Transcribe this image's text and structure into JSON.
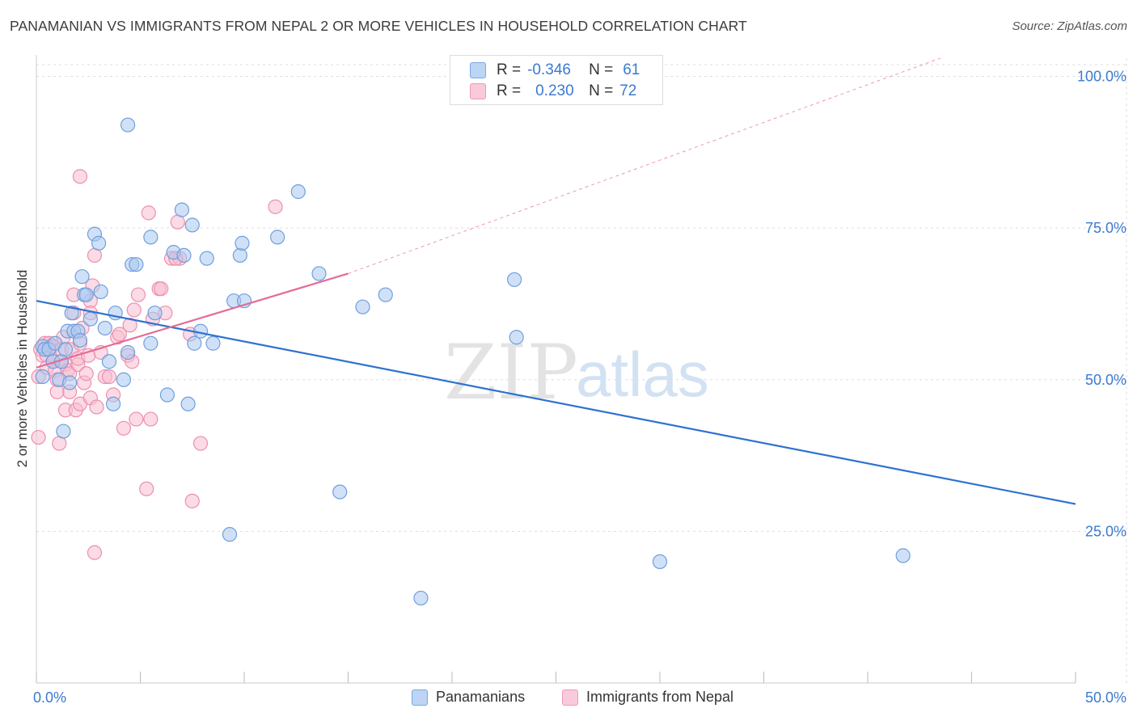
{
  "title": "PANAMANIAN VS IMMIGRANTS FROM NEPAL 2 OR MORE VEHICLES IN HOUSEHOLD CORRELATION CHART",
  "source": "Source: ZipAtlas.com",
  "watermark": {
    "zip": "ZIP",
    "atlas": "atlas"
  },
  "legend": {
    "panamanians": {
      "r_label": "R =",
      "r_value": "-0.346",
      "n_label": "N =",
      "n_value": "61"
    },
    "nepal": {
      "r_label": "R =",
      "r_value": "0.230",
      "n_label": "N =",
      "n_value": "72"
    }
  },
  "bottom_legend": {
    "panamanians": "Panamanians",
    "nepal": "Immigrants from Nepal"
  },
  "colors": {
    "blue_fill": "#a9c8f0",
    "blue_stroke": "#6f9fdc",
    "blue_line": "#2e72cf",
    "pink_fill": "#f7bdd0",
    "pink_stroke": "#ec8fae",
    "pink_line": "#e56b97",
    "axis_text": "#3a7ad0",
    "grid": "#dddddd"
  },
  "chart_data": {
    "type": "scatter",
    "title": "PANAMANIAN VS IMMIGRANTS FROM NEPAL 2 OR MORE VEHICLES IN HOUSEHOLD CORRELATION CHART",
    "xlabel": "",
    "ylabel": "2 or more Vehicles in Household",
    "xlim": [
      0,
      50
    ],
    "ylim": [
      0,
      103
    ],
    "x_tick_labels": {
      "left": "0.0%",
      "right": "50.0%"
    },
    "y_ticks": [
      25,
      50,
      75,
      100
    ],
    "y_tick_labels": [
      "25.0%",
      "50.0%",
      "75.0%",
      "100.0%"
    ],
    "series": [
      {
        "name": "Panamanians",
        "r": -0.346,
        "n": 61,
        "trend": {
          "x0": 0,
          "y0": 63.0,
          "x1": 50,
          "y1": 29.5,
          "dashed_to": null
        },
        "points": [
          [
            0.3,
            55.5
          ],
          [
            0.3,
            50.5
          ],
          [
            0.4,
            55
          ],
          [
            0.6,
            55
          ],
          [
            0.8,
            53
          ],
          [
            0.9,
            56
          ],
          [
            1.1,
            50
          ],
          [
            1.2,
            53
          ],
          [
            1.3,
            41.5
          ],
          [
            1.4,
            55
          ],
          [
            1.5,
            58
          ],
          [
            1.6,
            49.5
          ],
          [
            1.7,
            61
          ],
          [
            1.8,
            58
          ],
          [
            2.0,
            58
          ],
          [
            2.1,
            56.5
          ],
          [
            2.2,
            67
          ],
          [
            2.3,
            64
          ],
          [
            2.4,
            64
          ],
          [
            2.6,
            60
          ],
          [
            2.8,
            74
          ],
          [
            3.0,
            72.5
          ],
          [
            3.1,
            64.5
          ],
          [
            3.3,
            58.5
          ],
          [
            3.5,
            53
          ],
          [
            3.7,
            46
          ],
          [
            3.8,
            61
          ],
          [
            4.2,
            50
          ],
          [
            4.4,
            54.5
          ],
          [
            4.4,
            92
          ],
          [
            4.6,
            69
          ],
          [
            4.8,
            69
          ],
          [
            5.5,
            73.5
          ],
          [
            5.5,
            56
          ],
          [
            5.7,
            61
          ],
          [
            6.3,
            47.5
          ],
          [
            6.6,
            71
          ],
          [
            7.0,
            78
          ],
          [
            7.1,
            70.5
          ],
          [
            7.3,
            46
          ],
          [
            7.5,
            75.5
          ],
          [
            7.6,
            56
          ],
          [
            7.9,
            58
          ],
          [
            8.2,
            70
          ],
          [
            8.5,
            56
          ],
          [
            9.3,
            24.5
          ],
          [
            9.5,
            63
          ],
          [
            9.8,
            70.5
          ],
          [
            9.9,
            72.5
          ],
          [
            10.0,
            63
          ],
          [
            11.6,
            73.5
          ],
          [
            12.6,
            81
          ],
          [
            13.6,
            67.5
          ],
          [
            14.6,
            31.5
          ],
          [
            15.7,
            62
          ],
          [
            16.8,
            64
          ],
          [
            18.5,
            14
          ],
          [
            23.0,
            66.5
          ],
          [
            23.1,
            57
          ],
          [
            30.0,
            20
          ],
          [
            41.7,
            21
          ]
        ]
      },
      {
        "name": "Immigrants from Nepal",
        "r": 0.23,
        "n": 72,
        "trend": {
          "x0": 0,
          "y0": 52.0,
          "x1": 15.0,
          "y1": 67.5,
          "dashed_to": [
            43.5,
            103
          ]
        },
        "points": [
          [
            0.1,
            50.5
          ],
          [
            0.1,
            40.5
          ],
          [
            0.2,
            55
          ],
          [
            0.3,
            54
          ],
          [
            0.4,
            56
          ],
          [
            0.5,
            54
          ],
          [
            0.5,
            52
          ],
          [
            0.6,
            56
          ],
          [
            0.6,
            55
          ],
          [
            0.7,
            55.5
          ],
          [
            0.8,
            55.5
          ],
          [
            0.8,
            53
          ],
          [
            0.9,
            51.5
          ],
          [
            1.0,
            50
          ],
          [
            1.0,
            48
          ],
          [
            1.1,
            39.5
          ],
          [
            1.2,
            55
          ],
          [
            1.2,
            53
          ],
          [
            1.3,
            57
          ],
          [
            1.4,
            45
          ],
          [
            1.4,
            52.5
          ],
          [
            1.5,
            51.5
          ],
          [
            1.6,
            51
          ],
          [
            1.6,
            48
          ],
          [
            1.7,
            55
          ],
          [
            1.8,
            64
          ],
          [
            1.8,
            61
          ],
          [
            1.9,
            45
          ],
          [
            2.0,
            52.5
          ],
          [
            2.0,
            53.5
          ],
          [
            2.1,
            56
          ],
          [
            2.1,
            46
          ],
          [
            2.1,
            83.5
          ],
          [
            2.2,
            58.5
          ],
          [
            2.3,
            49.5
          ],
          [
            2.4,
            51
          ],
          [
            2.5,
            54
          ],
          [
            2.6,
            63
          ],
          [
            2.6,
            61
          ],
          [
            2.6,
            47
          ],
          [
            2.7,
            65.5
          ],
          [
            2.8,
            70.5
          ],
          [
            2.8,
            21.5
          ],
          [
            2.9,
            45.5
          ],
          [
            3.1,
            54.5
          ],
          [
            3.3,
            50.5
          ],
          [
            3.5,
            50.5
          ],
          [
            3.7,
            47.5
          ],
          [
            3.9,
            57
          ],
          [
            4.0,
            57.5
          ],
          [
            4.2,
            42
          ],
          [
            4.4,
            54
          ],
          [
            4.5,
            59
          ],
          [
            4.6,
            53
          ],
          [
            4.7,
            61.5
          ],
          [
            4.8,
            43.5
          ],
          [
            4.9,
            64
          ],
          [
            5.3,
            32
          ],
          [
            5.4,
            77.5
          ],
          [
            5.5,
            43.5
          ],
          [
            5.6,
            60
          ],
          [
            5.9,
            65
          ],
          [
            6.0,
            65
          ],
          [
            6.2,
            61
          ],
          [
            6.5,
            70
          ],
          [
            6.8,
            76
          ],
          [
            6.9,
            70
          ],
          [
            7.4,
            57.5
          ],
          [
            7.5,
            30
          ],
          [
            7.9,
            39.5
          ],
          [
            11.5,
            78.5
          ],
          [
            6.7,
            70
          ]
        ]
      }
    ]
  }
}
